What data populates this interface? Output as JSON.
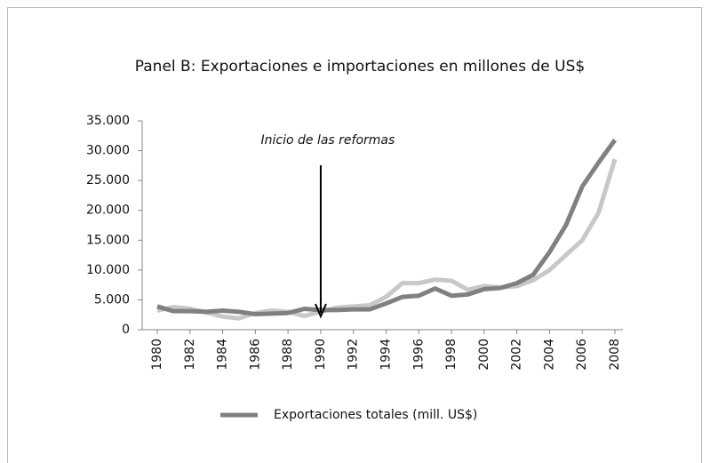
{
  "chart_data": {
    "type": "line",
    "title": "Panel B: Exportaciones e importaciones en millones de US$",
    "annotation": "Inicio de las reformas",
    "annotation_x": 1990,
    "x": [
      1980,
      1981,
      1982,
      1983,
      1984,
      1985,
      1986,
      1987,
      1988,
      1989,
      1990,
      1991,
      1992,
      1993,
      1994,
      1995,
      1996,
      1997,
      1998,
      1999,
      2000,
      2001,
      2002,
      2003,
      2004,
      2005,
      2006,
      2007,
      2008
    ],
    "series": [
      {
        "name": "Exportaciones totales (mill. US$)",
        "color": "#808080",
        "values": [
          3900,
          3100,
          3100,
          3000,
          3200,
          3000,
          2600,
          2700,
          2800,
          3500,
          3300,
          3300,
          3400,
          3400,
          4400,
          5500,
          5700,
          6900,
          5700,
          5900,
          6800,
          7000,
          7800,
          9200,
          13000,
          17500,
          24000,
          28000,
          31800
        ]
      },
      {
        "color": "#c8c8c8",
        "values": [
          3200,
          3800,
          3500,
          2900,
          2200,
          1900,
          2800,
          3200,
          3000,
          2300,
          3000,
          3700,
          3900,
          4100,
          5500,
          7800,
          7800,
          8400,
          8200,
          6700,
          7300,
          7100,
          7300,
          8300,
          10000,
          12500,
          15000,
          19600,
          28600
        ]
      }
    ],
    "xlim": [
      1980,
      2008
    ],
    "xticks": [
      1980,
      1982,
      1984,
      1986,
      1988,
      1990,
      1992,
      1994,
      1996,
      1998,
      2000,
      2002,
      2004,
      2006,
      2008
    ],
    "ylim": [
      0,
      35000
    ],
    "yticks": [
      0,
      {
        "value": 5000,
        "label": "5.000"
      },
      {
        "value": 10000,
        "label": "10.000"
      },
      {
        "value": 15000,
        "label": "15.000"
      },
      {
        "value": 20000,
        "label": "20.000"
      },
      {
        "value": 25000,
        "label": "25.000"
      },
      {
        "value": 30000,
        "label": "30.000"
      },
      {
        "value": 35000,
        "label": "35.000"
      }
    ],
    "grid": false
  }
}
